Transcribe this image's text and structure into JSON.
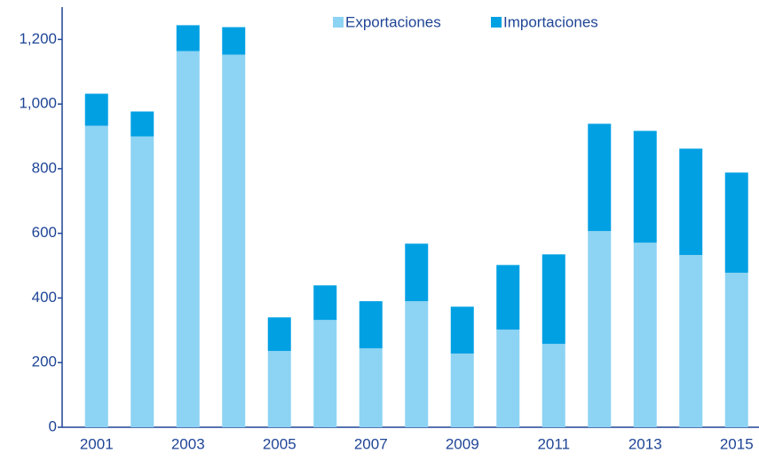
{
  "chart_data": {
    "type": "stacked_bar",
    "categories": [
      "2001",
      null,
      "2003",
      null,
      "2005",
      null,
      "2007",
      null,
      "2009",
      null,
      "2011",
      null,
      "2013",
      null,
      "2015"
    ],
    "series": [
      {
        "name": "Exportaciones",
        "color": "#8dd3f3",
        "values": [
          933,
          900,
          1164,
          1153,
          236,
          332,
          244,
          390,
          228,
          302,
          258,
          607,
          571,
          533,
          478
        ]
      },
      {
        "name": "Importaciones",
        "color": "#00a0e3",
        "values": [
          99,
          77,
          80,
          85,
          104,
          107,
          146,
          178,
          145,
          200,
          277,
          332,
          346,
          329,
          310
        ]
      }
    ],
    "ylim": [
      0,
      1300
    ],
    "yticks": [
      0,
      200,
      400,
      600,
      800,
      {
        "value": 1000,
        "label": "1,000"
      },
      {
        "value": 1200,
        "label": "1,200"
      }
    ],
    "legend": "top",
    "grid": false
  }
}
